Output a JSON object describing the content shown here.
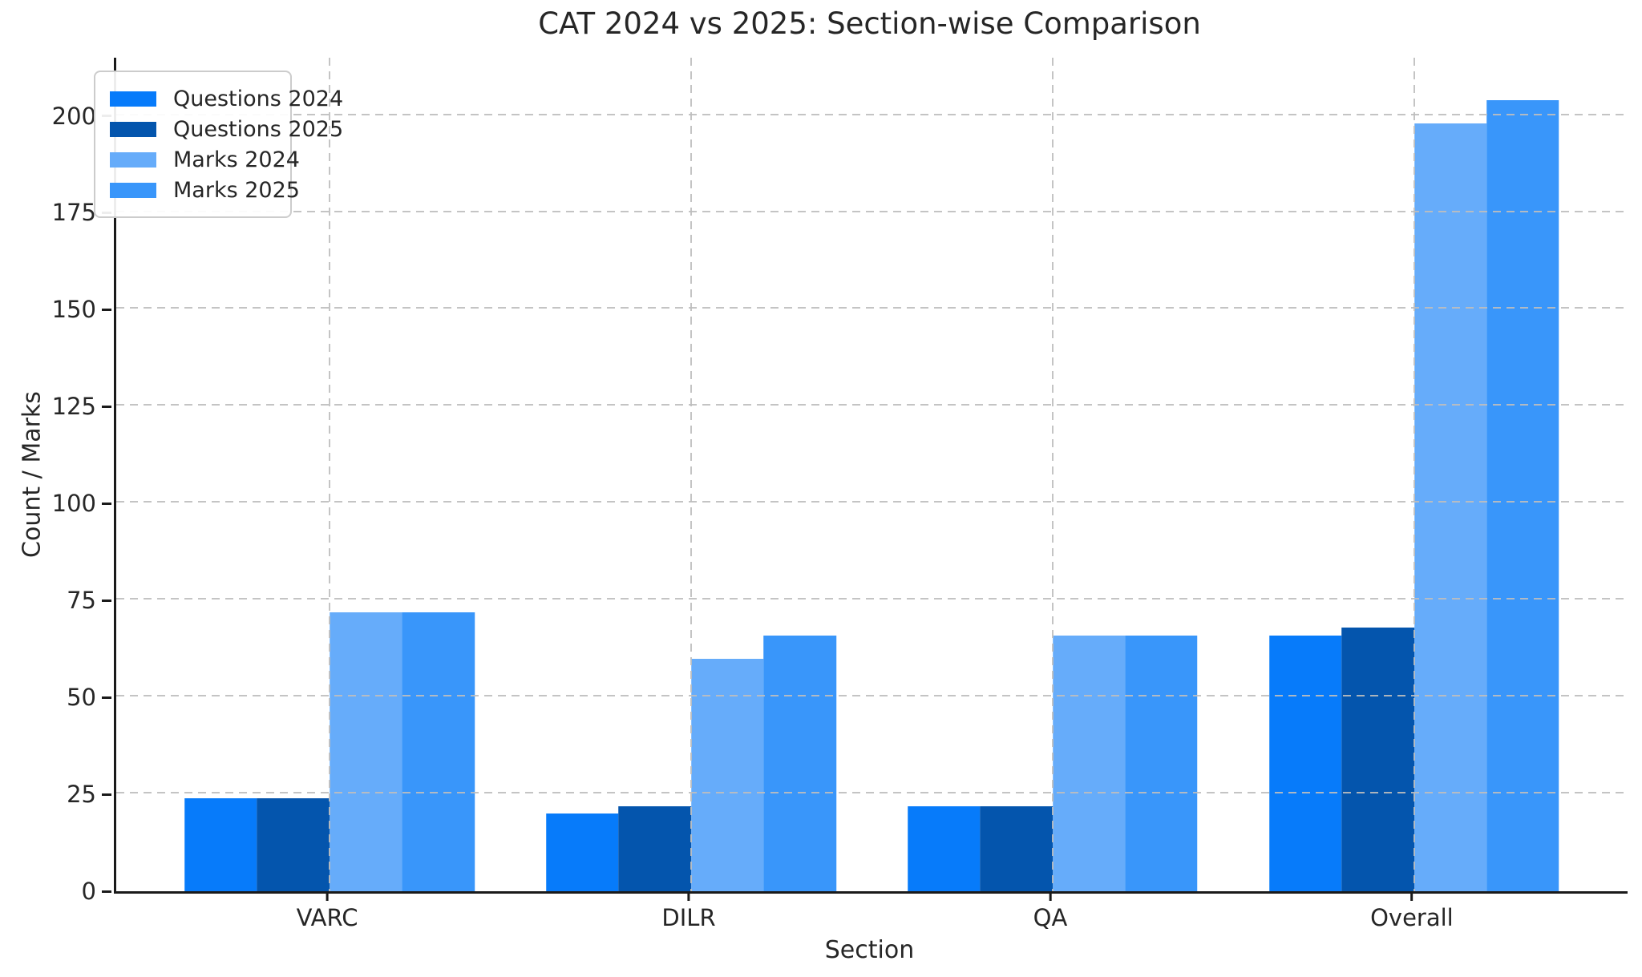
{
  "chart_data": {
    "type": "bar",
    "title": "CAT 2024 vs 2025: Section-wise Comparison",
    "xlabel": "Section",
    "ylabel": "Count / Marks",
    "categories": [
      "VARC",
      "DILR",
      "QA",
      "Overall"
    ],
    "series": [
      {
        "name": "Questions 2024",
        "color": "#077bfa",
        "values": [
          24,
          20,
          22,
          66
        ]
      },
      {
        "name": "Questions 2025",
        "color": "#0455ad",
        "values": [
          24,
          22,
          22,
          68
        ]
      },
      {
        "name": "Marks 2024",
        "color": "#66acfa",
        "values": [
          72,
          60,
          66,
          198
        ]
      },
      {
        "name": "Marks 2025",
        "color": "#3996fa",
        "values": [
          72,
          66,
          66,
          204
        ]
      }
    ],
    "yticks": [
      0,
      25,
      50,
      75,
      100,
      125,
      150,
      175,
      200
    ],
    "ylim": [
      0,
      215
    ],
    "grid": true,
    "grid_style": "dashed",
    "grid_on_top": true,
    "legend_position": "upper left",
    "colors": {
      "questions_2024": "#077bfa",
      "questions_2025": "#0455ad",
      "marks_2024": "#66acfa",
      "marks_2025": "#3996fa",
      "grid": "#bebebe",
      "spine": "#1a1a1a",
      "text": "#262626",
      "background": "#ffffff"
    }
  }
}
